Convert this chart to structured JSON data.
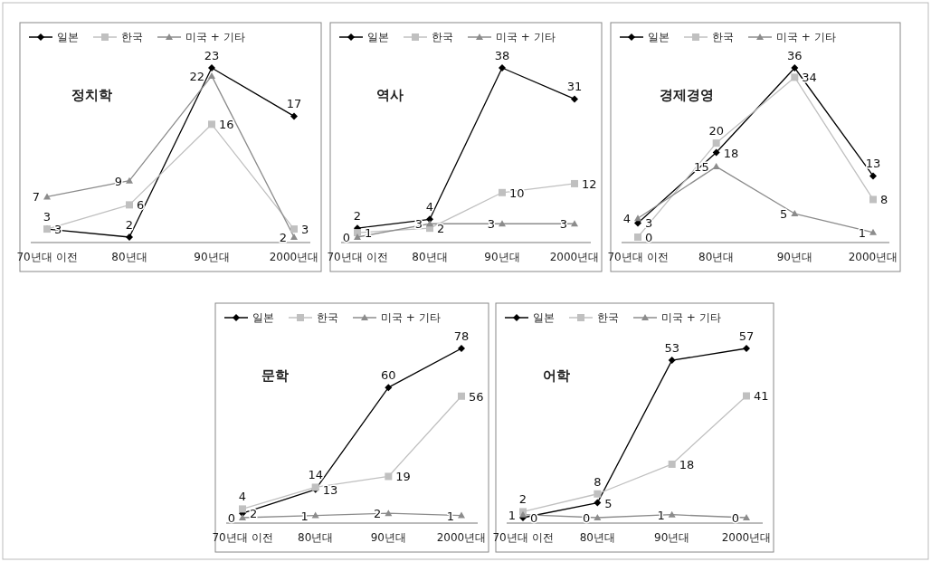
{
  "chart_data": [
    {
      "type": "line",
      "title": "정치학",
      "categories": [
        "70년대 이전",
        "80년대",
        "90년대",
        "2000년대"
      ],
      "data_labels": true,
      "legend": "top",
      "tick_labels": "x",
      "series": [
        {
          "name": "일본",
          "color": "#000000",
          "marker": "diamond",
          "values": [
            3,
            2,
            23,
            17
          ]
        },
        {
          "name": "한국",
          "color": "#c0c0c0",
          "marker": "square",
          "values": [
            3,
            6,
            16,
            3
          ]
        },
        {
          "name": "미국 + 기타",
          "color": "#8c8c8c",
          "marker": "triangle",
          "values": [
            7,
            9,
            22,
            2
          ]
        }
      ]
    },
    {
      "type": "line",
      "title": "역사",
      "categories": [
        "70년대 이전",
        "80년대",
        "90년대",
        "2000년대"
      ],
      "data_labels": true,
      "legend": "top",
      "tick_labels": "x",
      "series": [
        {
          "name": "일본",
          "color": "#000000",
          "marker": "diamond",
          "values": [
            2,
            4,
            38,
            31
          ]
        },
        {
          "name": "한국",
          "color": "#c0c0c0",
          "marker": "square",
          "values": [
            1,
            2,
            10,
            12
          ]
        },
        {
          "name": "미국 + 기타",
          "color": "#8c8c8c",
          "marker": "triangle",
          "values": [
            0,
            3,
            3,
            3
          ]
        }
      ]
    },
    {
      "type": "line",
      "title": "경제경영",
      "categories": [
        "70년대 이전",
        "80년대",
        "90년대",
        "2000년대"
      ],
      "data_labels": true,
      "legend": "top",
      "tick_labels": "x",
      "series": [
        {
          "name": "일본",
          "color": "#000000",
          "marker": "diamond",
          "values": [
            3,
            18,
            36,
            13
          ]
        },
        {
          "name": "한국",
          "color": "#c0c0c0",
          "marker": "square",
          "values": [
            0,
            20,
            34,
            8
          ]
        },
        {
          "name": "미국 + 기타",
          "color": "#8c8c8c",
          "marker": "triangle",
          "values": [
            4,
            15,
            5,
            1
          ]
        }
      ]
    },
    {
      "type": "line",
      "title": "문학",
      "categories": [
        "70년대 이전",
        "80년대",
        "90년대",
        "2000년대"
      ],
      "data_labels": true,
      "legend": "top",
      "tick_labels": "x",
      "series": [
        {
          "name": "일본",
          "color": "#000000",
          "marker": "diamond",
          "values": [
            2,
            13,
            60,
            78
          ]
        },
        {
          "name": "한국",
          "color": "#c0c0c0",
          "marker": "square",
          "values": [
            4,
            14,
            19,
            56
          ]
        },
        {
          "name": "미국 + 기타",
          "color": "#8c8c8c",
          "marker": "triangle",
          "values": [
            0,
            1,
            2,
            1
          ]
        }
      ]
    },
    {
      "type": "line",
      "title": "어학",
      "categories": [
        "70년대 이전",
        "80년대",
        "90년대",
        "2000년대"
      ],
      "data_labels": true,
      "legend": "top",
      "tick_labels": "x",
      "series": [
        {
          "name": "일본",
          "color": "#000000",
          "marker": "diamond",
          "values": [
            0,
            5,
            53,
            57
          ]
        },
        {
          "name": "한국",
          "color": "#c0c0c0",
          "marker": "square",
          "values": [
            2,
            8,
            18,
            41
          ]
        },
        {
          "name": "미국 + 기타",
          "color": "#8c8c8c",
          "marker": "triangle",
          "values": [
            1,
            0,
            1,
            0
          ]
        }
      ]
    }
  ]
}
